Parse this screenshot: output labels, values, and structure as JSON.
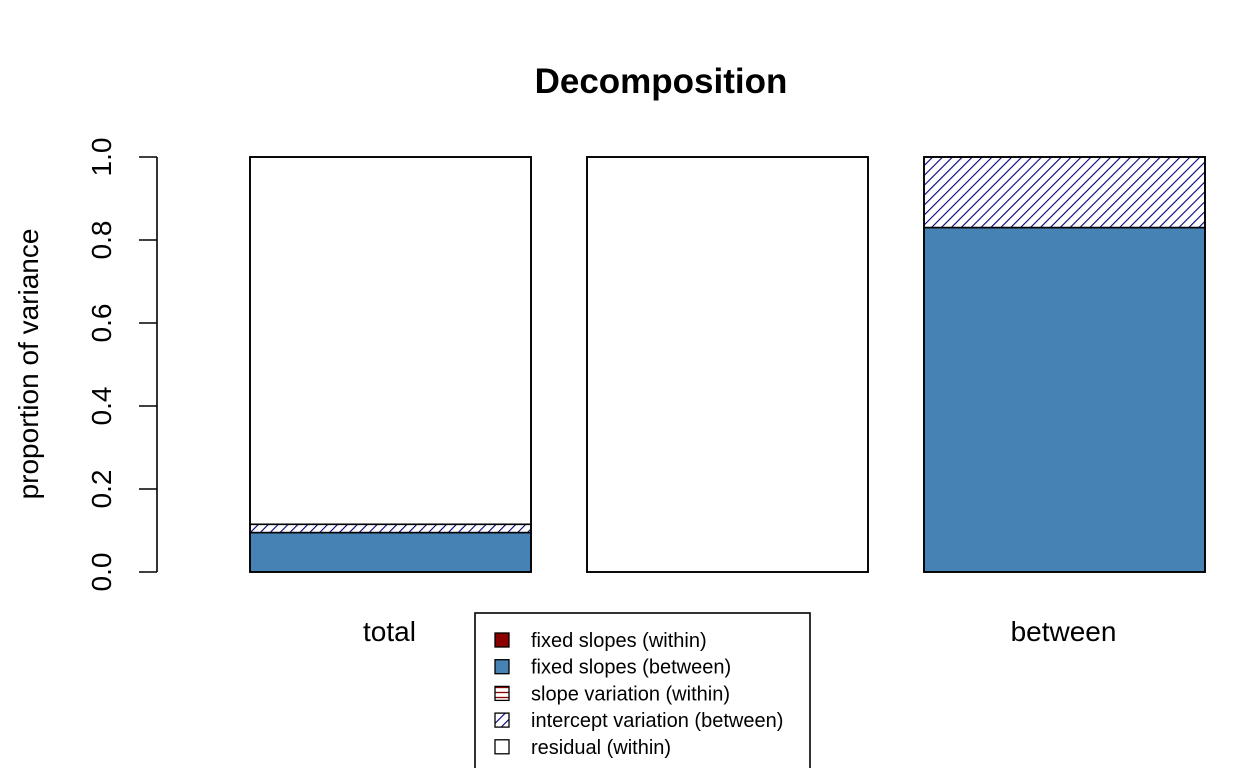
{
  "chart_data": {
    "type": "bar",
    "stacked": true,
    "title": "Decomposition",
    "xlabel": "",
    "ylabel": "proportion of variance",
    "ylim": [
      0,
      1
    ],
    "yticks": [
      "0.0",
      "0.2",
      "0.4",
      "0.6",
      "0.8",
      "1.0"
    ],
    "grid": false,
    "legend_position": "bottom-center",
    "categories": [
      "total",
      "",
      "between"
    ],
    "series": [
      {
        "name": "fixed slopes (within)",
        "fill": "#8b0000",
        "pattern": "solid",
        "values": [
          0.0,
          0.0,
          0.0
        ]
      },
      {
        "name": "fixed slopes (between)",
        "fill": "#4682b4",
        "pattern": "solid",
        "values": [
          0.095,
          0.0,
          0.83
        ]
      },
      {
        "name": "slope variation (within)",
        "fill": "#8b0000",
        "pattern": "horizontal-lines",
        "values": [
          0.0,
          0.0,
          0.0
        ]
      },
      {
        "name": "intercept variation (between)",
        "fill": "#000080",
        "pattern": "diagonal-lines",
        "values": [
          0.02,
          0.0,
          0.17
        ]
      },
      {
        "name": "residual (within)",
        "fill": "#ffffff",
        "pattern": "solid",
        "values": [
          0.885,
          1.0,
          0.0
        ]
      }
    ]
  }
}
